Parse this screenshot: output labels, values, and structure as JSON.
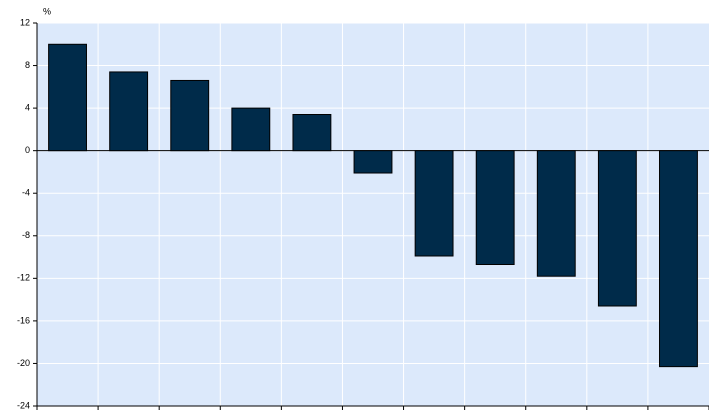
{
  "chart_data": {
    "type": "bar",
    "y_label": "%",
    "categories": [
      null,
      null,
      null,
      null,
      null,
      null,
      null,
      null,
      null,
      null,
      null
    ],
    "values": [
      10,
      7.4,
      6.6,
      4,
      3.4,
      -2.1,
      -9.9,
      -10.7,
      -11.8,
      -14.6,
      -20.3
    ],
    "color": "#002b4a",
    "ylim": [
      -24,
      12
    ],
    "yticks": [
      -24,
      -20,
      -16,
      -12,
      -8,
      -4,
      0,
      4,
      8,
      12
    ],
    "grid": true
  }
}
